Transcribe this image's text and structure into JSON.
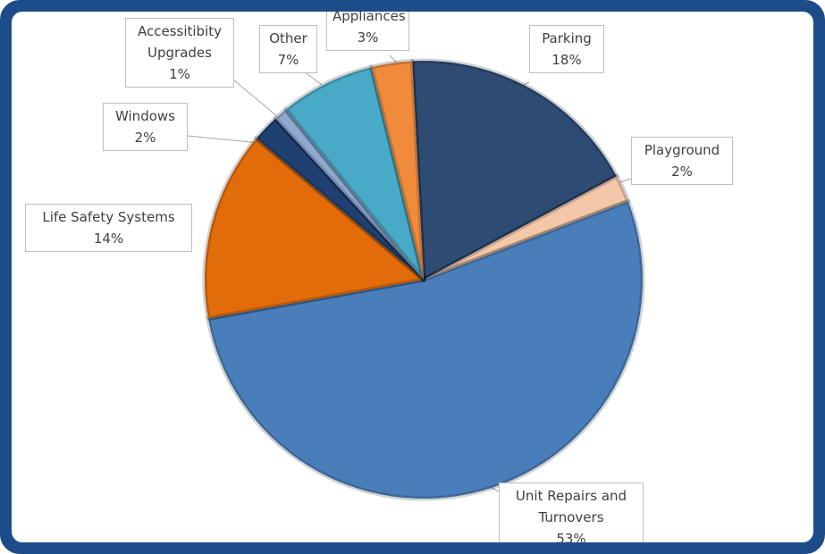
{
  "chart_data": {
    "type": "pie",
    "categories": [
      "Parking",
      "Playground",
      "Unit Repairs and Turnovers",
      "Life Safety Systems",
      "Windows",
      "Accessitibity Upgrades",
      "Other",
      "Appliances"
    ],
    "values": [
      18,
      2,
      53,
      14,
      2,
      1,
      7,
      3
    ],
    "value_labels": [
      "18%",
      "2%",
      "53%",
      "14%",
      "2%",
      "1%",
      "7%",
      "3%"
    ],
    "colors": [
      "#2e4b73",
      "#f3c7a8",
      "#4a7ebb",
      "#e36c0a",
      "#1f4070",
      "#8ea8cf",
      "#48aac6",
      "#f08b3c"
    ]
  }
}
